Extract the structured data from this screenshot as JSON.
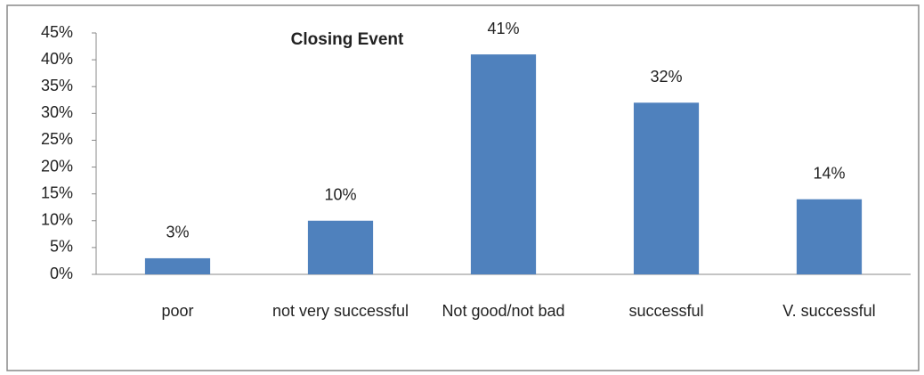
{
  "chart_data": {
    "type": "bar",
    "title": "Closing Event",
    "categories": [
      "poor",
      "not very successful",
      "Not good/not bad",
      "successful",
      "V. successful"
    ],
    "values": [
      3,
      10,
      41,
      32,
      14
    ],
    "value_labels": [
      "3%",
      "10%",
      "41%",
      "32%",
      "14%"
    ],
    "color": "#4f81bd",
    "ylim": [
      0,
      45
    ],
    "yticks": [
      {
        "value": 0,
        "label": "0%"
      },
      {
        "value": 5,
        "label": "5%"
      },
      {
        "value": 10,
        "label": "10%"
      },
      {
        "value": 15,
        "label": "15%"
      },
      {
        "value": 20,
        "label": "20%"
      },
      {
        "value": 25,
        "label": "25%"
      },
      {
        "value": 30,
        "label": "30%"
      },
      {
        "value": 35,
        "label": "35%"
      },
      {
        "value": 40,
        "label": "40%"
      },
      {
        "value": 45,
        "label": "45%"
      }
    ],
    "grid": false
  }
}
